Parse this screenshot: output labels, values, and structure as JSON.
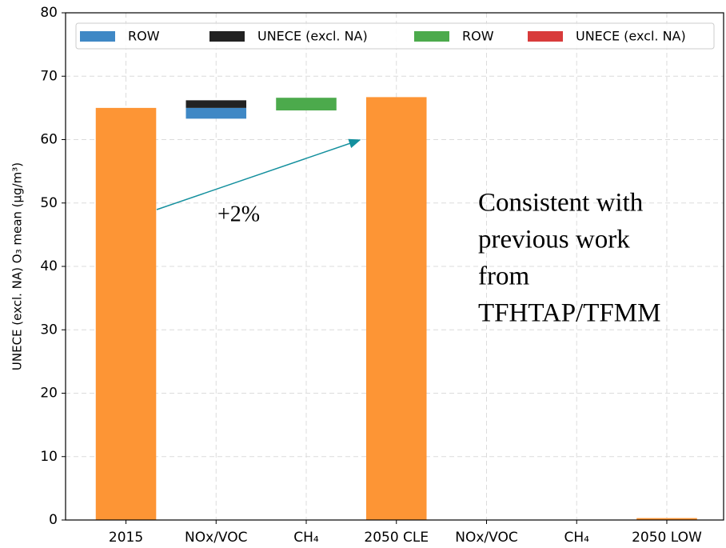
{
  "chart_data": {
    "type": "waterfall",
    "y_label": "UNECE (excl. NA) O₃ mean (μg/m³)",
    "categories": [
      "2015",
      "NOx/VOC",
      "CH₄",
      "2050 CLE",
      "NOx/VOC",
      "CH₄",
      "2050 LOW"
    ],
    "totals": {
      "color": "#fd9535",
      "values": [
        65,
        null,
        null,
        66.7,
        null,
        null,
        0.3
      ]
    },
    "series": [
      {
        "name": "ROW",
        "color": "#3f88c5",
        "values": [
          null,
          [
            63.3,
            65
          ],
          null,
          null,
          null,
          null,
          null
        ]
      },
      {
        "name": "UNECE (excl. NA)",
        "color": "#222222",
        "values": [
          null,
          [
            65,
            66.2
          ],
          null,
          null,
          null,
          null,
          null
        ]
      },
      {
        "name": "ROW",
        "color": "#4caa4c",
        "values": [
          null,
          null,
          [
            64.6,
            66.6
          ],
          null,
          null,
          null,
          null
        ]
      },
      {
        "name": "UNECE (excl. NA)",
        "color": "#d83b3b",
        "values": [
          null,
          null,
          null,
          null,
          null,
          null,
          null
        ]
      }
    ],
    "ylim": [
      0,
      80
    ],
    "yticks": [
      0,
      10,
      20,
      30,
      40,
      50,
      60,
      70,
      80
    ],
    "grid": true,
    "annotation": "+2%",
    "note": [
      "Consistent with",
      "previous work",
      "from",
      "TFHTAP/TFMM"
    ]
  }
}
